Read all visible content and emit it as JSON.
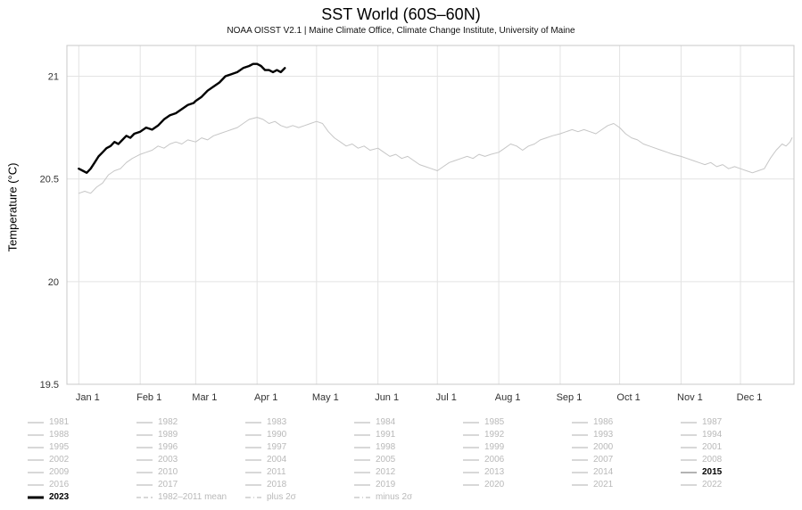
{
  "header": {
    "title": "SST World (60S–60N)",
    "subtitle": "NOAA OISST V2.1 | Maine Climate Office, Climate Change Institute, University of Maine"
  },
  "colors": {
    "grid": "#e3e3e3",
    "border": "#c8c8c8",
    "tick_text": "#333333",
    "muted_text": "#b9b9b9",
    "muted_swatch": "#cccccc",
    "series_2015": "#c6c6c6",
    "series_2023": "#000000"
  },
  "chart_data": {
    "type": "line",
    "title": "SST World (60S–60N)",
    "xlabel": "",
    "ylabel": "Temperature (°C)",
    "ylim": [
      19.5,
      21.15
    ],
    "xlim": [
      -6,
      361
    ],
    "grid": true,
    "ytick_values": [
      19.5,
      20,
      20.5,
      21
    ],
    "ytick_labels": [
      "19.5",
      "20",
      "20.5",
      "21"
    ],
    "xtick_days": [
      0,
      31,
      59,
      90,
      120,
      151,
      181,
      212,
      243,
      273,
      304,
      334
    ],
    "xtick_labels": [
      "Jan 1",
      "Feb 1",
      "Mar 1",
      "Apr 1",
      "May 1",
      "Jun 1",
      "Jul 1",
      "Aug 1",
      "Sep 1",
      "Oct 1",
      "Nov 1",
      "Dec 1"
    ],
    "series": [
      {
        "name": "2015",
        "color": "#c6c6c6",
        "width": 1,
        "x": [
          0,
          3,
          6,
          9,
          12,
          15,
          18,
          21,
          24,
          27,
          31,
          34,
          37,
          40,
          43,
          46,
          49,
          52,
          55,
          59,
          62,
          65,
          68,
          71,
          74,
          77,
          80,
          83,
          86,
          90,
          93,
          96,
          99,
          102,
          105,
          108,
          111,
          114,
          117,
          120,
          123,
          126,
          129,
          132,
          135,
          138,
          141,
          144,
          147,
          151,
          154,
          157,
          160,
          163,
          166,
          169,
          172,
          175,
          178,
          181,
          184,
          187,
          190,
          193,
          196,
          199,
          202,
          205,
          208,
          212,
          215,
          218,
          221,
          224,
          227,
          230,
          233,
          236,
          239,
          243,
          246,
          249,
          252,
          255,
          258,
          261,
          264,
          267,
          270,
          273,
          276,
          279,
          282,
          285,
          288,
          291,
          294,
          297,
          300,
          304,
          307,
          310,
          313,
          316,
          319,
          322,
          325,
          328,
          331,
          334,
          337,
          340,
          343,
          346,
          349,
          352,
          355,
          357,
          359,
          360
        ],
        "y": [
          20.43,
          20.44,
          20.43,
          20.46,
          20.48,
          20.52,
          20.54,
          20.55,
          20.58,
          20.6,
          20.62,
          20.63,
          20.64,
          20.66,
          20.65,
          20.67,
          20.68,
          20.67,
          20.69,
          20.68,
          20.7,
          20.69,
          20.71,
          20.72,
          20.73,
          20.74,
          20.75,
          20.77,
          20.79,
          20.8,
          20.79,
          20.77,
          20.78,
          20.76,
          20.75,
          20.76,
          20.75,
          20.76,
          20.77,
          20.78,
          20.77,
          20.73,
          20.7,
          20.68,
          20.66,
          20.67,
          20.65,
          20.66,
          20.64,
          20.65,
          20.63,
          20.61,
          20.62,
          20.6,
          20.61,
          20.59,
          20.57,
          20.56,
          20.55,
          20.54,
          20.56,
          20.58,
          20.59,
          20.6,
          20.61,
          20.6,
          20.62,
          20.61,
          20.62,
          20.63,
          20.65,
          20.67,
          20.66,
          20.64,
          20.66,
          20.67,
          20.69,
          20.7,
          20.71,
          20.72,
          20.73,
          20.74,
          20.73,
          20.74,
          20.73,
          20.72,
          20.74,
          20.76,
          20.77,
          20.75,
          20.72,
          20.7,
          20.69,
          20.67,
          20.66,
          20.65,
          20.64,
          20.63,
          20.62,
          20.61,
          20.6,
          20.59,
          20.58,
          20.57,
          20.58,
          20.56,
          20.57,
          20.55,
          20.56,
          20.55,
          20.54,
          20.53,
          20.54,
          20.55,
          20.6,
          20.64,
          20.67,
          20.66,
          20.68,
          20.7
        ]
      },
      {
        "name": "2023",
        "color": "#000000",
        "width": 2.4,
        "x": [
          0,
          2,
          4,
          6,
          8,
          10,
          12,
          14,
          16,
          18,
          20,
          22,
          24,
          26,
          28,
          31,
          34,
          37,
          40,
          43,
          46,
          49,
          52,
          55,
          58,
          59,
          62,
          65,
          68,
          71,
          74,
          77,
          80,
          83,
          86,
          88,
          90,
          92,
          94,
          96,
          98,
          100,
          102,
          104
        ],
        "y": [
          20.55,
          20.54,
          20.53,
          20.55,
          20.58,
          20.61,
          20.63,
          20.65,
          20.66,
          20.68,
          20.67,
          20.69,
          20.71,
          20.7,
          20.72,
          20.73,
          20.75,
          20.74,
          20.76,
          20.79,
          20.81,
          20.82,
          20.84,
          20.86,
          20.87,
          20.88,
          20.9,
          20.93,
          20.95,
          20.97,
          21.0,
          21.01,
          21.02,
          21.04,
          21.05,
          21.06,
          21.06,
          21.05,
          21.03,
          21.03,
          21.02,
          21.03,
          21.02,
          21.04
        ]
      }
    ]
  },
  "legend": {
    "items": [
      {
        "label": "1981"
      },
      {
        "label": "1982"
      },
      {
        "label": "1983"
      },
      {
        "label": "1984"
      },
      {
        "label": "1985"
      },
      {
        "label": "1986"
      },
      {
        "label": "1987"
      },
      {
        "label": "1988"
      },
      {
        "label": "1989"
      },
      {
        "label": "1990"
      },
      {
        "label": "1991"
      },
      {
        "label": "1992"
      },
      {
        "label": "1993"
      },
      {
        "label": "1994"
      },
      {
        "label": "1995"
      },
      {
        "label": "1996"
      },
      {
        "label": "1997"
      },
      {
        "label": "1998"
      },
      {
        "label": "1999"
      },
      {
        "label": "2000"
      },
      {
        "label": "2001"
      },
      {
        "label": "2002"
      },
      {
        "label": "2003"
      },
      {
        "label": "2004"
      },
      {
        "label": "2005"
      },
      {
        "label": "2006"
      },
      {
        "label": "2007"
      },
      {
        "label": "2008"
      },
      {
        "label": "2009"
      },
      {
        "label": "2010"
      },
      {
        "label": "2011"
      },
      {
        "label": "2012"
      },
      {
        "label": "2013"
      },
      {
        "label": "2014"
      },
      {
        "label": "2015",
        "bold": true,
        "swatch_color": "#9a9a9a"
      },
      {
        "label": "2016"
      },
      {
        "label": "2017"
      },
      {
        "label": "2018"
      },
      {
        "label": "2019"
      },
      {
        "label": "2020"
      },
      {
        "label": "2021"
      },
      {
        "label": "2022"
      },
      {
        "label": "2023",
        "bold": true,
        "swatch_color": "#000000",
        "swatch_width": 3
      },
      {
        "label": "1982–2011 mean",
        "dash": "5,3"
      },
      {
        "label": "plus 2σ",
        "dash": "6,3,1,3"
      },
      {
        "label": "minus 2σ",
        "dash": "6,3,1,3"
      }
    ]
  }
}
